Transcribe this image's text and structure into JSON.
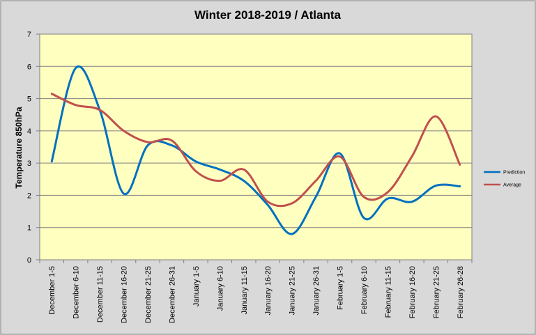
{
  "chart_data": {
    "type": "line",
    "title": "Winter 2018-2019 / Atlanta",
    "ylabel": "Temperature 850hPa",
    "xlabel": "",
    "ylim": [
      0,
      7
    ],
    "yticks": [
      "0",
      "1",
      "2",
      "3",
      "4",
      "5",
      "6",
      "7"
    ],
    "grid": true,
    "legend": "right",
    "smooth": true,
    "plot_background": "#ffffc0",
    "categories": [
      "December 1-5",
      "December 6-10",
      "December 11-15",
      "December 16-20",
      "December 21-25",
      "December 26-31",
      "January 1-5",
      "January 6-10",
      "January 11-15",
      "January 16-20",
      "January 21-25",
      "January 26-31",
      "February 1-5",
      "February 6-10",
      "February 11-15",
      "February 16-20",
      "February 21-25",
      "February 26-28"
    ],
    "series": [
      {
        "name": "Prediction",
        "color": "#0070c0",
        "values": [
          3.05,
          5.95,
          4.65,
          2.05,
          3.55,
          3.55,
          3.05,
          2.8,
          2.45,
          1.7,
          0.8,
          1.95,
          3.3,
          1.3,
          1.9,
          1.8,
          2.3,
          2.28
        ]
      },
      {
        "name": "Average",
        "color": "#c0504d",
        "values": [
          5.15,
          4.8,
          4.65,
          4.0,
          3.65,
          3.7,
          2.75,
          2.45,
          2.8,
          1.8,
          1.75,
          2.45,
          3.2,
          1.95,
          2.1,
          3.2,
          4.45,
          2.95
        ]
      }
    ]
  }
}
